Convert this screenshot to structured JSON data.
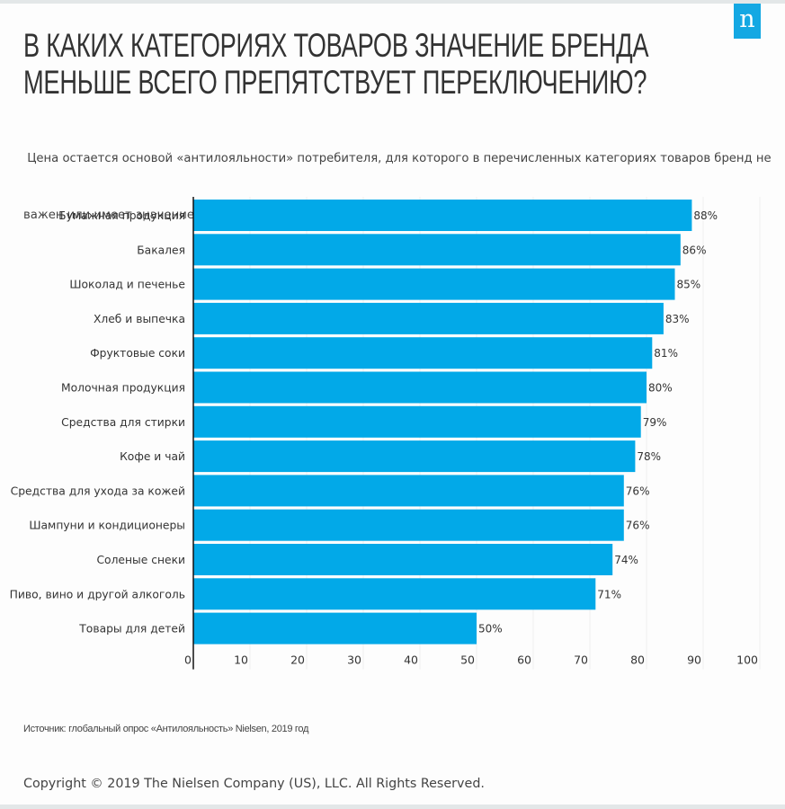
{
  "logo": {
    "glyph": "n",
    "icon": "nielsen-logo-icon",
    "color": "#14a8e3"
  },
  "header": {
    "title_lines": [
      "В КАКИХ КАТЕГОРИЯХ ТОВАРОВ ЗНАЧЕНИЕ БРЕНДА",
      "МЕНЬШЕ ВСЕГО ПРЕПЯТСТВУЕТ ПЕРЕКЛЮЧЕНИЮ?"
    ],
    "subtitle_lines": [
      " Цена остается основой «антилояльности» потребителя, для которого в перечисленных категориях товаров бренд не",
      "важен или имеет значение, но не препятствует переключению"
    ]
  },
  "chart_data": {
    "type": "bar",
    "orientation": "horizontal",
    "title": "В КАКИХ КАТЕГОРИЯХ ТОВАРОВ ЗНАЧЕНИЕ БРЕНДА МЕНЬШЕ ВСЕГО ПРЕПЯТСТВУЕТ ПЕРЕКЛЮЧЕНИЮ?",
    "xlabel": "",
    "ylabel": "",
    "categories": [
      "Бумажная продукция",
      "Бакалея",
      "Шоколад и печенье",
      "Хлеб и выпечка",
      "Фруктовые соки",
      "Молочная продукция",
      "Средства для стирки",
      "Кофе и чай",
      "Средства для ухода за кожей",
      "Шампуни и кондиционеры",
      "Соленые снеки",
      "Пиво, вино и другой алкоголь",
      "Товары для детей"
    ],
    "values": [
      88,
      86,
      85,
      83,
      81,
      80,
      79,
      78,
      76,
      76,
      74,
      71,
      50
    ],
    "data_labels": [
      "88%",
      "86%",
      "85%",
      "83%",
      "81%",
      "80%",
      "79%",
      "78%",
      "76%",
      "76%",
      "74%",
      "71%",
      "50%"
    ],
    "xlim": [
      0,
      100
    ],
    "xticks": [
      0,
      10,
      20,
      30,
      40,
      50,
      60,
      70,
      80,
      90,
      100
    ],
    "grid": "vertical",
    "legend": "none",
    "bar_color": "#02a9e8"
  },
  "footer": {
    "source": "Источник: глобальный опрос «Антилояльность» Nielsen, 2019 год",
    "copyright": "Copyright © 2019 The Nielsen Company (US), LLC. All Rights Reserved."
  }
}
